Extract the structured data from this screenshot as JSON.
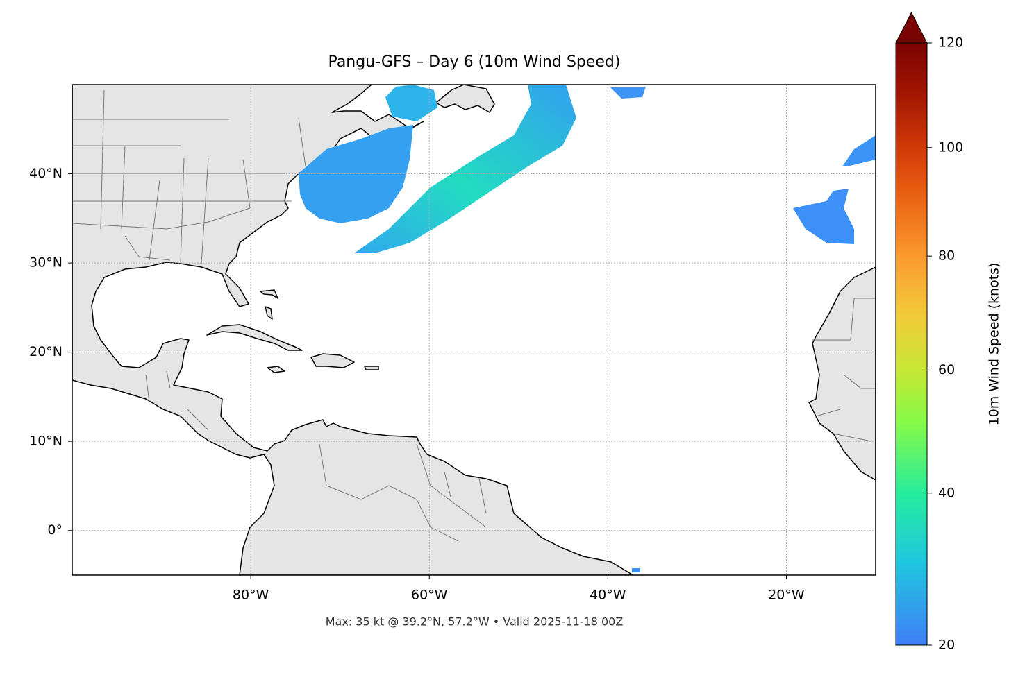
{
  "title": "Pangu-GFS – Day 6 (10m Wind Speed)",
  "map": {
    "xlim": [
      -100,
      -10
    ],
    "ylim": [
      -5,
      50
    ],
    "xticks": [
      {
        "value": -80,
        "label": "80°W"
      },
      {
        "value": -60,
        "label": "60°W"
      },
      {
        "value": -40,
        "label": "40°W"
      },
      {
        "value": -20,
        "label": "20°W"
      }
    ],
    "yticks": [
      {
        "value": 0,
        "label": "0°"
      },
      {
        "value": 10,
        "label": "10°N"
      },
      {
        "value": 20,
        "label": "20°N"
      },
      {
        "value": 30,
        "label": "30°N"
      },
      {
        "value": 40,
        "label": "40°N"
      }
    ],
    "grid": true
  },
  "colorbar": {
    "label": "10m Wind Speed (knots)",
    "lim": [
      20,
      120
    ],
    "ticks": [
      20,
      40,
      60,
      80,
      100,
      120
    ],
    "scale": "power",
    "gamma": 0.855,
    "extend": "max"
  },
  "footnote": "Max: 35 kt @ 39.2°N, 57.2°W • Valid 2025-11-18 00Z"
}
